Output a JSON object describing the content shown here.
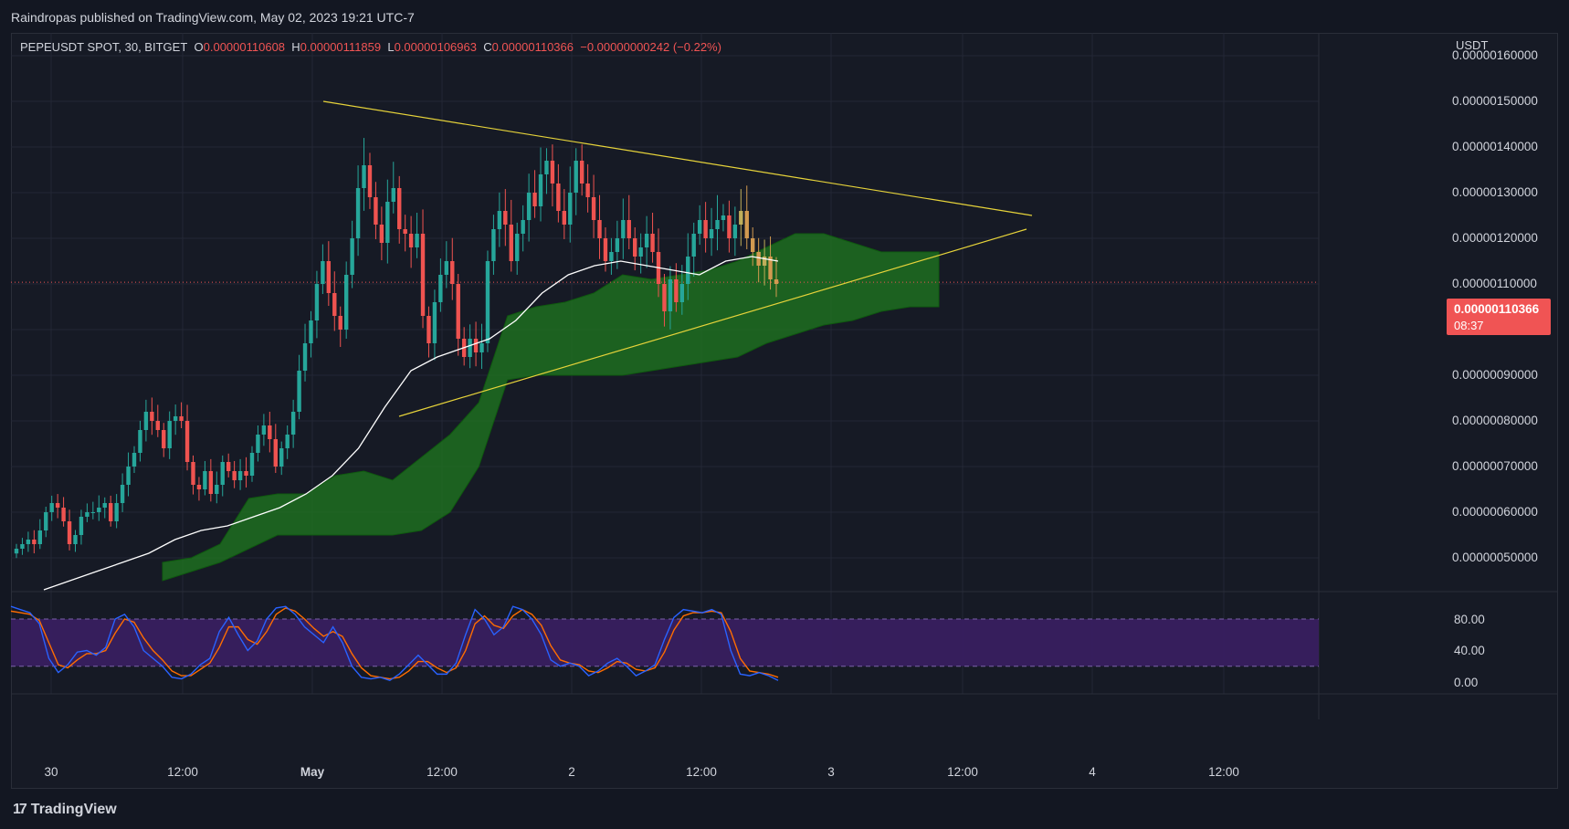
{
  "header": {
    "publish_info": "Raindropas published on TradingView.com, May 02, 2023 19:21 UTC-7"
  },
  "legend": {
    "symbol": "PEPEUSDT SPOT, 30, BITGET",
    "o_label": "O",
    "o_value": "0.00000110608",
    "h_label": "H",
    "h_value": "0.00000111859",
    "l_label": "L",
    "l_value": "0.00000106963",
    "c_label": "C",
    "c_value": "0.00000110366",
    "change": "−0.00000000242 (−0.22%)"
  },
  "price_axis": {
    "unit": "USDT",
    "ticks": [
      "0.00000160000",
      "0.00000150000",
      "0.00000140000",
      "0.00000130000",
      "0.00000120000",
      "0.00000110000",
      "0.00000100000",
      "0.00000090000",
      "0.00000080000",
      "0.00000070000",
      "0.00000060000",
      "0.00000050000"
    ],
    "last_price": "0.00000110366",
    "countdown": "08:37"
  },
  "osc_axis": {
    "ticks": [
      "80.00",
      "40.00",
      "0.00"
    ]
  },
  "time_axis": {
    "ticks": [
      {
        "label": "30",
        "bold": false
      },
      {
        "label": "12:00",
        "bold": false
      },
      {
        "label": "May",
        "bold": true
      },
      {
        "label": "12:00",
        "bold": false
      },
      {
        "label": "2",
        "bold": false
      },
      {
        "label": "12:00",
        "bold": false
      },
      {
        "label": "3",
        "bold": false
      },
      {
        "label": "12:00",
        "bold": false
      },
      {
        "label": "4",
        "bold": false
      },
      {
        "label": "12:00",
        "bold": false
      }
    ]
  },
  "footer": {
    "brand": "TradingView"
  },
  "colors": {
    "up": "#26a69a",
    "down": "#ef5350",
    "background": "#131722",
    "pane": "#161a25",
    "grid": "#232735",
    "trendline": "#e6d33a",
    "cloud": "#1f7a1f",
    "ma": "#ffffff",
    "stoch_k": "#2962ff",
    "stoch_d": "#ff6d00",
    "osc_band": "#3a1f63",
    "last_price": "#f05454"
  },
  "chart_data": {
    "type": "candlestick",
    "title": "PEPEUSDT SPOT, 30, BITGET",
    "unit": "USDT",
    "interval": "30",
    "ylim": [
      4.5e-07,
      1.6e-06
    ],
    "grid": true,
    "candles_close": [
      5.2e-07,
      5.3e-07,
      5.4e-07,
      5.3e-07,
      5.6e-07,
      6e-07,
      6.2e-07,
      6.1e-07,
      5.8e-07,
      5.3e-07,
      5.5e-07,
      5.9e-07,
      6e-07,
      6e-07,
      6.1e-07,
      6.2e-07,
      5.8e-07,
      6.2e-07,
      6.6e-07,
      7e-07,
      7.3e-07,
      7.8e-07,
      8.2e-07,
      8e-07,
      7.8e-07,
      7.4e-07,
      8e-07,
      8.1e-07,
      8e-07,
      7.1e-07,
      6.6e-07,
      6.5e-07,
      6.9e-07,
      6.4e-07,
      6.6e-07,
      7.1e-07,
      6.9e-07,
      6.7e-07,
      6.9e-07,
      6.8e-07,
      7.3e-07,
      7.7e-07,
      7.9e-07,
      7.6e-07,
      7e-07,
      7.4e-07,
      7.7e-07,
      8.2e-07,
      9.1e-07,
      9.7e-07,
      1.02e-06,
      1.1e-06,
      1.15e-06,
      1.08e-06,
      1.03e-06,
      1e-06,
      1.12e-06,
      1.2e-06,
      1.31e-06,
      1.36e-06,
      1.29e-06,
      1.23e-06,
      1.19e-06,
      1.28e-06,
      1.31e-06,
      1.22e-06,
      1.21e-06,
      1.18e-06,
      1.21e-06,
      1.03e-06,
      9.7e-07,
      1.06e-06,
      1.12e-06,
      1.15e-06,
      1.1e-06,
      9.8e-07,
      9.4e-07,
      9.8e-07,
      9.5e-07,
      9.7e-07,
      1.15e-06,
      1.22e-06,
      1.26e-06,
      1.23e-06,
      1.15e-06,
      1.21e-06,
      1.24e-06,
      1.3e-06,
      1.27e-06,
      1.34e-06,
      1.37e-06,
      1.32e-06,
      1.26e-06,
      1.23e-06,
      1.3e-06,
      1.37e-06,
      1.32e-06,
      1.29e-06,
      1.24e-06,
      1.2e-06,
      1.15e-06,
      1.17e-06,
      1.2e-06,
      1.24e-06,
      1.2e-06,
      1.16e-06,
      1.18e-06,
      1.21e-06,
      1.17e-06,
      1.1e-06,
      1.04e-06,
      1.11e-06,
      1.06e-06,
      1.1e-06,
      1.16e-06,
      1.21e-06,
      1.24e-06,
      1.2e-06,
      1.22e-06,
      1.24e-06,
      1.25e-06,
      1.2e-06,
      1.23e-06,
      1.26e-06,
      1.2e-06,
      1.17e-06,
      1.14e-06,
      1.16e-06,
      1.11e-06,
      1.1e-06
    ],
    "ma_series": [
      4.3e-07,
      4.5e-07,
      4.7e-07,
      4.9e-07,
      5.1e-07,
      5.4e-07,
      5.6e-07,
      5.7e-07,
      5.9e-07,
      6.1e-07,
      6.4e-07,
      6.8e-07,
      7.4e-07,
      8.3e-07,
      9.1e-07,
      9.4e-07,
      9.6e-07,
      9.8e-07,
      1.02e-06,
      1.08e-06,
      1.12e-06,
      1.14e-06,
      1.15e-06,
      1.14e-06,
      1.13e-06,
      1.12e-06,
      1.15e-06,
      1.16e-06,
      1.15e-06
    ],
    "cloud_upper": [
      4.9e-07,
      5e-07,
      5.3e-07,
      6.3e-07,
      6.4e-07,
      6.4e-07,
      6.8e-07,
      6.9e-07,
      6.7e-07,
      7.2e-07,
      7.7e-07,
      8.4e-07,
      1.03e-06,
      1.05e-06,
      1.06e-06,
      1.08e-06,
      1.12e-06,
      1.11e-06,
      1.12e-06,
      1.13e-06,
      1.15e-06,
      1.18e-06,
      1.21e-06,
      1.21e-06,
      1.19e-06,
      1.17e-06,
      1.17e-06,
      1.17e-06
    ],
    "cloud_lower": [
      4.5e-07,
      4.7e-07,
      4.9e-07,
      5.2e-07,
      5.5e-07,
      5.5e-07,
      5.5e-07,
      5.5e-07,
      5.5e-07,
      5.6e-07,
      6e-07,
      7e-07,
      8.9e-07,
      9e-07,
      9e-07,
      9e-07,
      9e-07,
      9.1e-07,
      9.2e-07,
      9.3e-07,
      9.4e-07,
      9.7e-07,
      9.9e-07,
      1.01e-06,
      1.02e-06,
      1.04e-06,
      1.05e-06,
      1.05e-06
    ],
    "trendlines": [
      {
        "from": [
          0.0,
          1.5e-06
        ],
        "to": [
          1.0,
          1.25e-06
        ]
      },
      {
        "from": [
          0.0,
          8.1e-07
        ],
        "to": [
          1.0,
          1.22e-06
        ]
      }
    ],
    "oscillator": {
      "type": "stochastic",
      "ylim": [
        0,
        100
      ],
      "bands": [
        20,
        80
      ],
      "k": [
        96,
        92,
        88,
        74,
        30,
        12,
        22,
        38,
        40,
        34,
        44,
        80,
        86,
        70,
        40,
        30,
        20,
        6,
        4,
        10,
        22,
        30,
        64,
        82,
        60,
        40,
        52,
        80,
        94,
        96,
        86,
        70,
        60,
        50,
        70,
        50,
        20,
        6,
        4,
        6,
        2,
        10,
        22,
        34,
        22,
        10,
        10,
        24,
        60,
        92,
        80,
        60,
        70,
        96,
        92,
        80,
        60,
        28,
        20,
        24,
        20,
        8,
        14,
        24,
        30,
        20,
        8,
        14,
        22,
        54,
        82,
        92,
        90,
        88,
        92,
        86,
        40,
        10,
        8,
        12,
        8,
        2
      ],
      "d": [
        90,
        88,
        86,
        78,
        50,
        22,
        18,
        28,
        36,
        36,
        40,
        62,
        80,
        76,
        56,
        40,
        28,
        14,
        8,
        8,
        16,
        24,
        44,
        70,
        70,
        54,
        48,
        64,
        86,
        94,
        90,
        80,
        68,
        58,
        64,
        58,
        36,
        18,
        8,
        6,
        4,
        6,
        14,
        26,
        26,
        18,
        12,
        18,
        40,
        74,
        84,
        72,
        68,
        84,
        92,
        86,
        72,
        46,
        28,
        24,
        22,
        14,
        12,
        18,
        26,
        24,
        16,
        14,
        18,
        38,
        66,
        84,
        88,
        88,
        90,
        88,
        64,
        30,
        14,
        12,
        10,
        6
      ]
    }
  }
}
